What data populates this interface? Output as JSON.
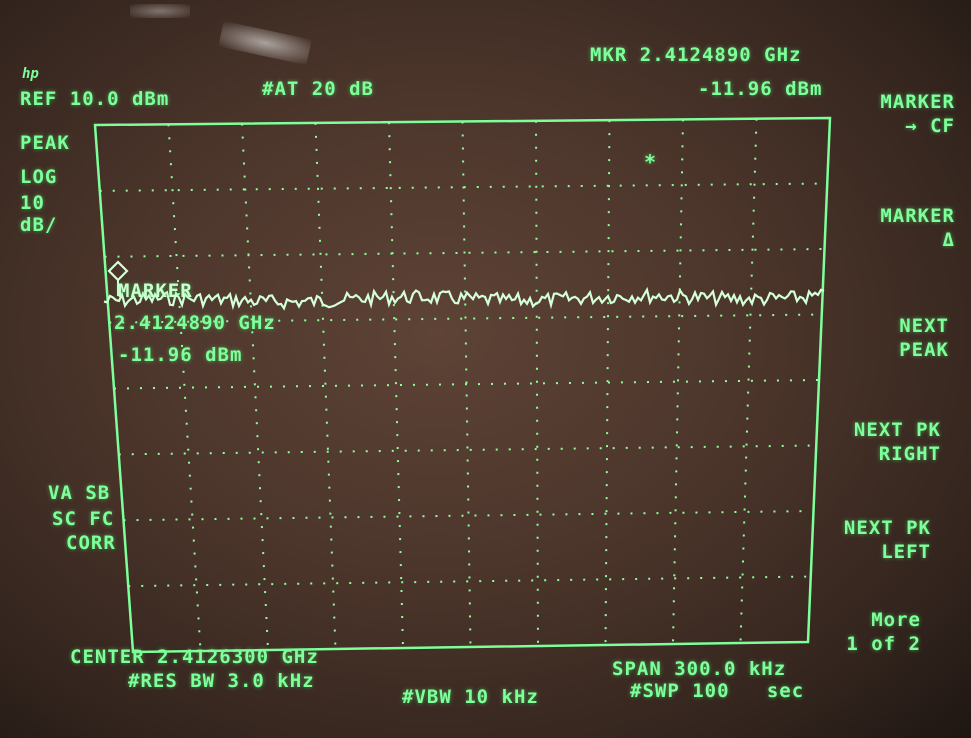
{
  "header": {
    "ref_level": "REF 10.0 dBm",
    "attenuation": "#AT 20 dB",
    "marker_freq": "MKR 2.4124890 GHz",
    "marker_level": "-11.96 dBm"
  },
  "left_panel": {
    "detector": "PEAK",
    "scale_type": "LOG",
    "scale_value": "10",
    "scale_unit": "dB/",
    "va_sb": "VA SB",
    "sc_fc": "SC FC",
    "corr": "CORR"
  },
  "marker_annotation": {
    "label": "MARKER",
    "freq": "2.4124890 GHz",
    "level": "-11.96 dBm",
    "star": "*"
  },
  "footer": {
    "center": "CENTER 2.4126300 GHz",
    "span": "SPAN 300.0 kHz",
    "res_bw": "#RES BW 3.0 kHz",
    "vbw": "#VBW 10 kHz",
    "sweep": "#SWP 100   sec"
  },
  "softkeys": [
    {
      "line1": "MARKER",
      "line2": "→ CF"
    },
    {
      "line1": "MARKER",
      "line2": "Δ"
    },
    {
      "line1": "NEXT",
      "line2": "PEAK"
    },
    {
      "line1": "NEXT PK",
      "line2": "RIGHT"
    },
    {
      "line1": "NEXT PK",
      "line2": "LEFT"
    },
    {
      "line1": "More",
      "line2": "1 of 2"
    }
  ],
  "colors": {
    "phosphor": "#7dff9a",
    "screen_bg": "#4a342a"
  }
}
